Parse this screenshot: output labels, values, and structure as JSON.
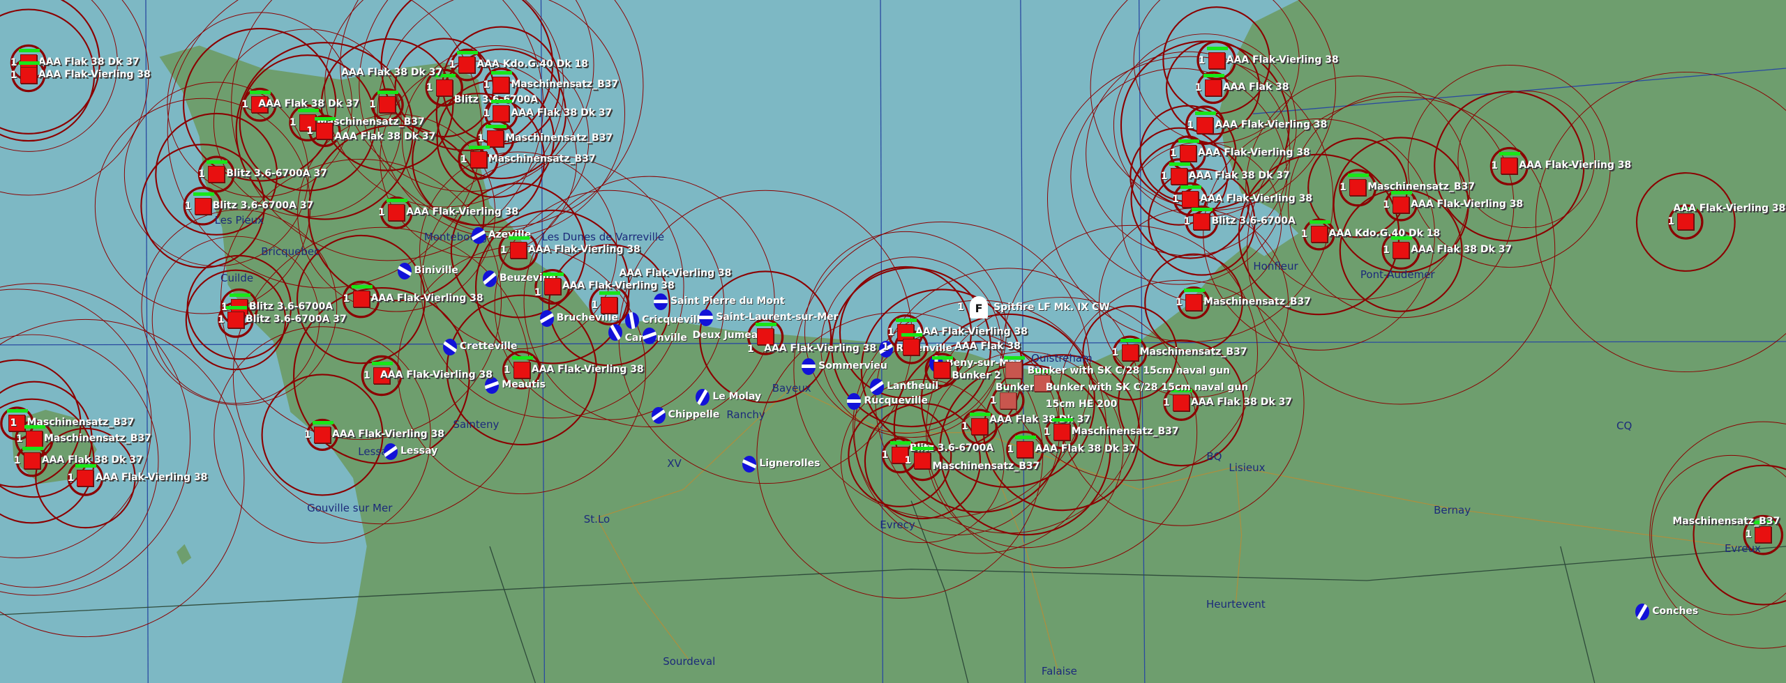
{
  "colors": {
    "sea": "#7db8c4",
    "land": "#6e9e6e",
    "range_ring": "#8b0000",
    "unit": "#e81010",
    "health": "#19e619",
    "airfield": "#1212d8",
    "town_label": "#1c2a7a",
    "grid": "#2a4aa0"
  },
  "aircraft": {
    "count": "1",
    "icon": "fighter-shield-icon",
    "letter": "F",
    "label": "Spitfire LF Mk. IX CW"
  },
  "bunker_gun": {
    "line1": "Bunker with SK C/28 15cm naval gun",
    "line2": "Bunker with SK C/28 15cm naval gun",
    "ammo": "15cm HE  200"
  },
  "units": [
    {
      "label": "AAA Flak 38 Dk 37",
      "count": "1"
    },
    {
      "label": "AAA Flak-Vierling 38",
      "count": "1"
    },
    {
      "label": "AAA Kdo.G.40 Dk 18",
      "count": "1"
    },
    {
      "label": "Maschinensatz_B37",
      "count": "1"
    },
    {
      "label": "Blitz 3.6-6700A",
      "count": "1"
    },
    {
      "label": "AAA Flak 38 Dk 37",
      "count": "1"
    },
    {
      "label": "Maschinensatz_B37",
      "count": "1"
    },
    {
      "label": "AAA Flak 38 Dk 37",
      "count": "1"
    },
    {
      "label": "AAA Flak 38 Dk 37",
      "count": "1"
    },
    {
      "label": "AAA Flak 38 Dk 37",
      "count": "1"
    },
    {
      "label": "Maschinensatz_B37",
      "count": "1"
    },
    {
      "label": "Maschinensatz_B37",
      "count": "1"
    },
    {
      "label": "Blitz 3.6-6700A 37",
      "count": "1"
    },
    {
      "label": "Blitz 3.6-6700A 37",
      "count": "1"
    },
    {
      "label": "AAA Flak-Vierling 38",
      "count": "1"
    },
    {
      "label": "AAA Flak-Vierling 38",
      "count": "1"
    },
    {
      "label": "AAA Flak-Vierling 38",
      "count": "1"
    },
    {
      "label": "Blitz 3.6-6700A",
      "count": "1"
    },
    {
      "label": "Blitz 3.6-6700A 37",
      "count": "1"
    },
    {
      "label": "AAA Flak-Vierling 38",
      "count": "1"
    },
    {
      "label": "AAA Flak-Vierling 38",
      "count": "1"
    },
    {
      "label": "AAA Flak-Vierling 38",
      "count": "1"
    },
    {
      "label": "AAA Flak-Vierling 38",
      "count": "1"
    },
    {
      "label": "AAA Flak 38",
      "count": "1"
    },
    {
      "label": "Bunker 2",
      "count": ""
    },
    {
      "label": "AAA Flak-Vierling 38",
      "count": "1"
    },
    {
      "label": "AAA Flak-Vierling 38",
      "count": "1"
    },
    {
      "label": "AAA Flak-Vierling 38",
      "count": "1"
    },
    {
      "label": "Maschinensatz_B37",
      "count": "1"
    },
    {
      "label": "Maschinensatz_B37",
      "count": "1"
    },
    {
      "label": "AAA Flak 38 Dk 37",
      "count": "1"
    },
    {
      "label": "AAA Flak-Vierling 38",
      "count": "1"
    },
    {
      "label": "AAA Flak 38 Dk 37",
      "count": "1"
    },
    {
      "label": "Blitz 3.6-6700A",
      "count": "1"
    },
    {
      "label": "Maschinensatz_B37",
      "count": "1"
    },
    {
      "label": "Maschinensatz_B37",
      "count": "1"
    },
    {
      "label": "AAA Flak 38 Dk 37",
      "count": "1"
    },
    {
      "label": "AAA Flak-Vierling 38",
      "count": "1"
    },
    {
      "label": "AAA Flak 38",
      "count": "1"
    },
    {
      "label": "AAA Flak-Vierling 38",
      "count": "1"
    },
    {
      "label": "AAA Flak-Vierling 38",
      "count": "1"
    },
    {
      "label": "AAA Flak 38 Dk 37",
      "count": "1"
    },
    {
      "label": "AAA Flak-Vierling 38",
      "count": "1"
    },
    {
      "label": "Blitz 3.6-6700A",
      "count": "1"
    },
    {
      "label": "Maschinensatz_B37",
      "count": "1"
    },
    {
      "label": "AAA Flak-Vierling 38",
      "count": "1"
    },
    {
      "label": "AAA Kdo.G.40 Dk 18",
      "count": "1"
    },
    {
      "label": "AAA Flak 38 Dk 37",
      "count": "1"
    },
    {
      "label": "AAA Flak-Vierling 38",
      "count": "1"
    },
    {
      "label": "AAA Flak-Vierling 38",
      "count": "1"
    },
    {
      "label": "Maschinensatz_B37",
      "count": "1"
    },
    {
      "label": "Maschinensatz_B37",
      "count": "1"
    },
    {
      "label": "AAA Flak 38 Dk 37",
      "count": "1"
    },
    {
      "label": "Maschinensatz_B37",
      "count": "1"
    },
    {
      "label": "Bunker 1",
      "count": "1"
    }
  ],
  "airfields": [
    {
      "name": "Azeville"
    },
    {
      "name": "Biniville"
    },
    {
      "name": "Beuzeville"
    },
    {
      "name": "Brucheville"
    },
    {
      "name": "Cretteville"
    },
    {
      "name": "Meautis"
    },
    {
      "name": "Lessay"
    },
    {
      "name": "Saint Pierre du Mont"
    },
    {
      "name": "Cricqueville"
    },
    {
      "name": "Cardonville"
    },
    {
      "name": "Deux Jumeaux"
    },
    {
      "name": "Saint-Laurent-sur-Mer"
    },
    {
      "name": "Sommervieu"
    },
    {
      "name": "Razenville"
    },
    {
      "name": "Beny-sur-Mer"
    },
    {
      "name": "Lantheuil"
    },
    {
      "name": "Rucqueville"
    },
    {
      "name": "Le Molay"
    },
    {
      "name": "Chippelle"
    },
    {
      "name": "Lignerolles"
    },
    {
      "name": "Conches"
    }
  ],
  "towns": [
    {
      "name": "Les Pieux"
    },
    {
      "name": "Bricquebec"
    },
    {
      "name": "Cuilde"
    },
    {
      "name": "Montebourg"
    },
    {
      "name": "Les Dunes de Varreville"
    },
    {
      "name": "Sainteny"
    },
    {
      "name": "Lessay"
    },
    {
      "name": "Gouville sur Mer"
    },
    {
      "name": "St.Lo"
    },
    {
      "name": "XV"
    },
    {
      "name": "Bayeux"
    },
    {
      "name": "Ranchy"
    },
    {
      "name": "Evrecy"
    },
    {
      "name": "Ouistreham"
    },
    {
      "name": "BQ"
    },
    {
      "name": "Lisieux"
    },
    {
      "name": "Bernay"
    },
    {
      "name": "CQ"
    },
    {
      "name": "Heurtevent"
    },
    {
      "name": "Sourdeval"
    },
    {
      "name": "Falaise"
    },
    {
      "name": "Honfleur"
    },
    {
      "name": "Pont-Audemer"
    },
    {
      "name": "Evreux"
    }
  ]
}
